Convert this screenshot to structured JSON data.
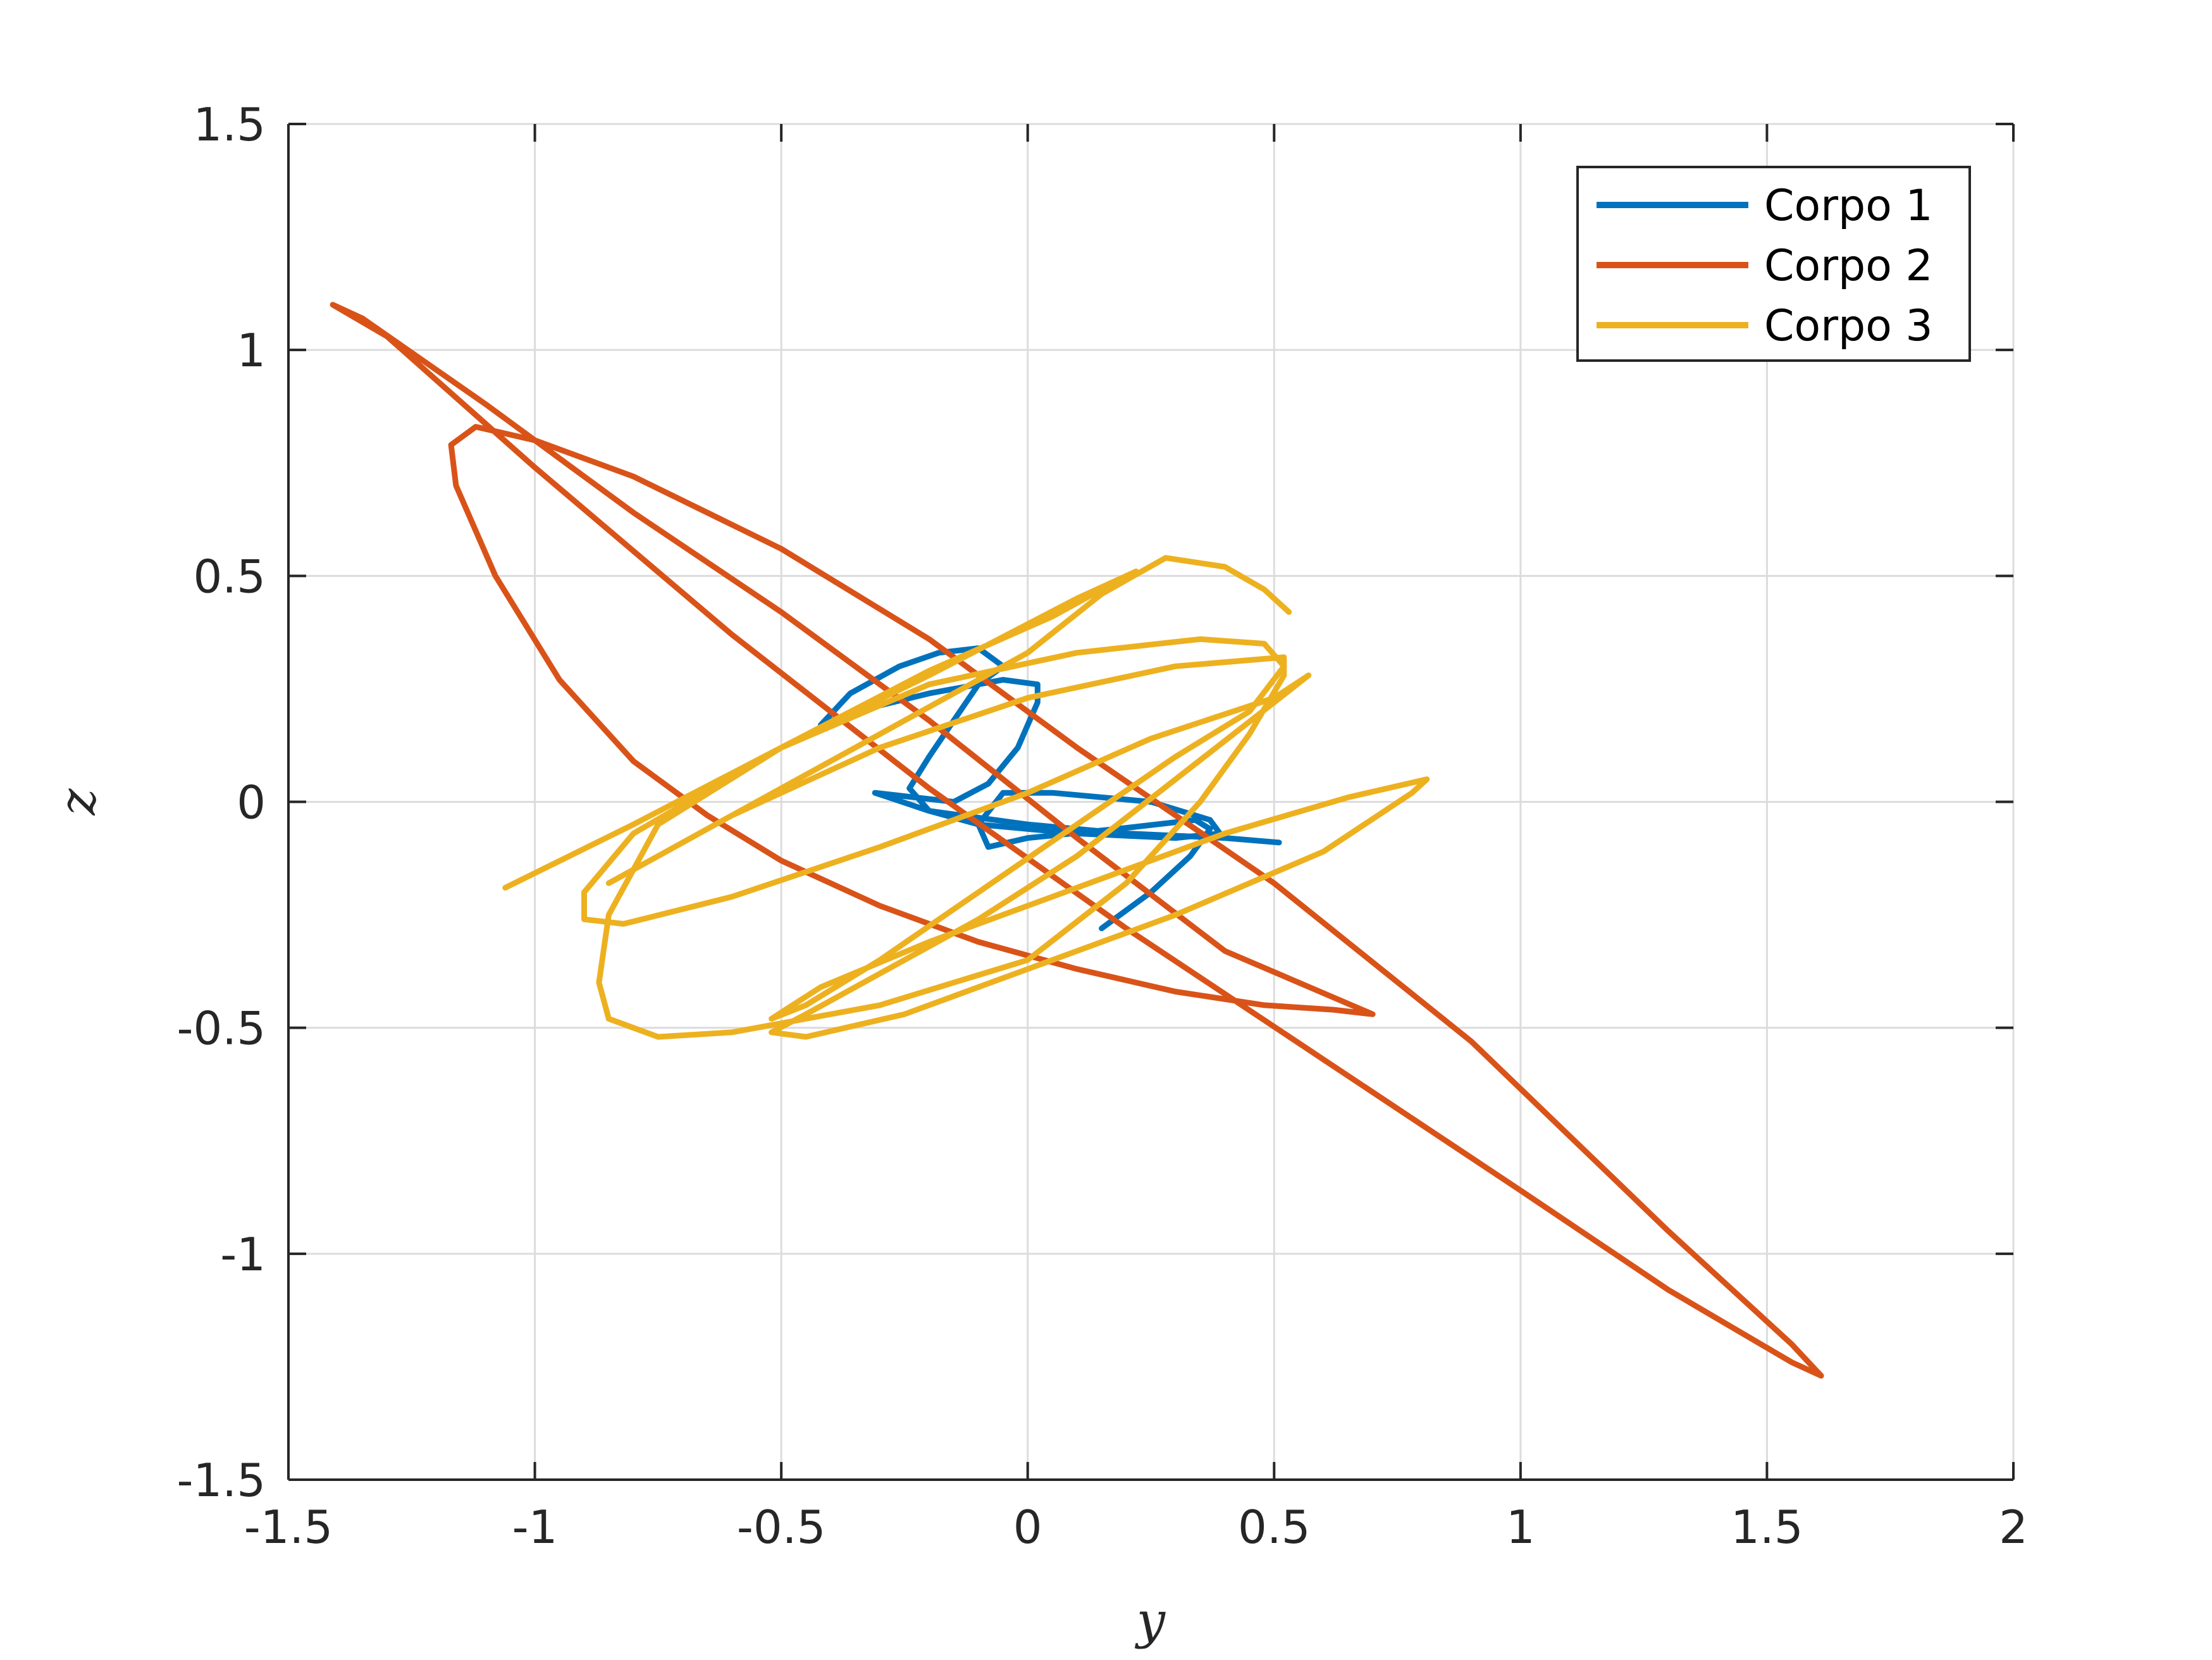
{
  "chart_data": {
    "type": "line",
    "xlabel": "y",
    "ylabel": "z",
    "xlim": [
      -1.5,
      2
    ],
    "ylim": [
      -1.5,
      1.5
    ],
    "xticks": [
      -1.5,
      -1,
      -0.5,
      0,
      0.5,
      1,
      1.5,
      2
    ],
    "yticks": [
      -1.5,
      -1,
      -0.5,
      0,
      0.5,
      1,
      1.5
    ],
    "xtick_labels": [
      "-1.5",
      "-1",
      "-0.5",
      "0",
      "0.5",
      "1",
      "1.5",
      "2"
    ],
    "ytick_labels": [
      "-1.5",
      "-1",
      "-0.5",
      "0",
      "0.5",
      "1",
      "1.5"
    ],
    "grid": true,
    "legend_position": "top-right",
    "series": [
      {
        "name": "Corpo 1",
        "color": "#0072BD",
        "points": [
          [
            0.15,
            -0.28
          ],
          [
            0.25,
            -0.2
          ],
          [
            0.33,
            -0.12
          ],
          [
            0.37,
            -0.06
          ],
          [
            0.34,
            -0.04
          ],
          [
            0.18,
            -0.06
          ],
          [
            0.0,
            -0.08
          ],
          [
            -0.08,
            -0.1
          ],
          [
            -0.1,
            -0.05
          ],
          [
            -0.05,
            0.02
          ],
          [
            0.05,
            0.02
          ],
          [
            0.25,
            0.0
          ],
          [
            0.37,
            -0.04
          ],
          [
            0.39,
            -0.07
          ],
          [
            0.3,
            -0.08
          ],
          [
            0.1,
            -0.07
          ],
          [
            -0.1,
            -0.05
          ],
          [
            -0.2,
            -0.02
          ],
          [
            -0.24,
            0.03
          ],
          [
            -0.2,
            0.1
          ],
          [
            -0.15,
            0.18
          ],
          [
            -0.1,
            0.26
          ],
          [
            -0.05,
            0.3
          ],
          [
            -0.1,
            0.34
          ],
          [
            -0.18,
            0.33
          ],
          [
            -0.26,
            0.3
          ],
          [
            -0.36,
            0.24
          ],
          [
            -0.42,
            0.17
          ],
          [
            -0.35,
            0.2
          ],
          [
            -0.2,
            0.24
          ],
          [
            -0.05,
            0.27
          ],
          [
            0.02,
            0.26
          ],
          [
            0.02,
            0.22
          ],
          [
            -0.02,
            0.12
          ],
          [
            -0.08,
            0.04
          ],
          [
            -0.15,
            0.0
          ],
          [
            -0.31,
            0.02
          ],
          [
            -0.2,
            -0.02
          ],
          [
            0.0,
            -0.05
          ],
          [
            0.2,
            -0.07
          ],
          [
            0.4,
            -0.08
          ],
          [
            0.51,
            -0.09
          ]
        ]
      },
      {
        "name": "Corpo 2",
        "color": "#D95319",
        "points": [
          [
            0.7,
            -0.47
          ],
          [
            0.62,
            -0.46
          ],
          [
            0.48,
            -0.45
          ],
          [
            0.3,
            -0.42
          ],
          [
            0.1,
            -0.37
          ],
          [
            -0.1,
            -0.31
          ],
          [
            -0.3,
            -0.23
          ],
          [
            -0.5,
            -0.13
          ],
          [
            -0.65,
            -0.03
          ],
          [
            -0.8,
            0.09
          ],
          [
            -0.95,
            0.27
          ],
          [
            -1.08,
            0.5
          ],
          [
            -1.16,
            0.7
          ],
          [
            -1.17,
            0.79
          ],
          [
            -1.12,
            0.83
          ],
          [
            -1.0,
            0.8
          ],
          [
            -0.8,
            0.72
          ],
          [
            -0.5,
            0.56
          ],
          [
            -0.2,
            0.36
          ],
          [
            0.1,
            0.12
          ],
          [
            0.5,
            -0.18
          ],
          [
            0.9,
            -0.53
          ],
          [
            1.3,
            -0.95
          ],
          [
            1.55,
            -1.2
          ],
          [
            1.61,
            -1.27
          ],
          [
            1.55,
            -1.24
          ],
          [
            1.3,
            -1.08
          ],
          [
            1.0,
            -0.86
          ],
          [
            0.6,
            -0.57
          ],
          [
            0.2,
            -0.28
          ],
          [
            -0.2,
            0.03
          ],
          [
            -0.6,
            0.37
          ],
          [
            -1.0,
            0.74
          ],
          [
            -1.3,
            1.03
          ],
          [
            -1.41,
            1.1
          ],
          [
            -1.35,
            1.07
          ],
          [
            -1.1,
            0.88
          ],
          [
            -0.8,
            0.64
          ],
          [
            -0.5,
            0.42
          ],
          [
            -0.2,
            0.18
          ],
          [
            0.1,
            -0.08
          ],
          [
            0.4,
            -0.33
          ],
          [
            0.7,
            -0.47
          ]
        ]
      },
      {
        "name": "Corpo 3",
        "color": "#EDB120",
        "points": [
          [
            -1.06,
            -0.19
          ],
          [
            -0.8,
            -0.05
          ],
          [
            -0.5,
            0.12
          ],
          [
            -0.2,
            0.29
          ],
          [
            0.05,
            0.41
          ],
          [
            0.2,
            0.5
          ],
          [
            0.22,
            0.51
          ],
          [
            0.1,
            0.45
          ],
          [
            -0.2,
            0.28
          ],
          [
            -0.5,
            0.12
          ],
          [
            -0.8,
            -0.07
          ],
          [
            -0.9,
            -0.2
          ],
          [
            -0.9,
            -0.26
          ],
          [
            -0.82,
            -0.27
          ],
          [
            -0.6,
            -0.21
          ],
          [
            -0.3,
            -0.1
          ],
          [
            0.0,
            0.02
          ],
          [
            0.25,
            0.14
          ],
          [
            0.5,
            0.23
          ],
          [
            0.57,
            0.28
          ],
          [
            0.5,
            0.22
          ],
          [
            0.3,
            0.05
          ],
          [
            0.1,
            -0.12
          ],
          [
            -0.1,
            -0.26
          ],
          [
            -0.3,
            -0.38
          ],
          [
            -0.45,
            -0.47
          ],
          [
            -0.52,
            -0.51
          ],
          [
            -0.45,
            -0.52
          ],
          [
            -0.25,
            -0.47
          ],
          [
            0.0,
            -0.37
          ],
          [
            0.3,
            -0.25
          ],
          [
            0.6,
            -0.11
          ],
          [
            0.78,
            0.02
          ],
          [
            0.81,
            0.05
          ],
          [
            0.65,
            0.01
          ],
          [
            0.4,
            -0.07
          ],
          [
            0.1,
            -0.19
          ],
          [
            -0.2,
            -0.31
          ],
          [
            -0.42,
            -0.41
          ],
          [
            -0.52,
            -0.48
          ],
          [
            -0.45,
            -0.45
          ],
          [
            -0.3,
            -0.35
          ],
          [
            -0.1,
            -0.2
          ],
          [
            0.1,
            -0.05
          ],
          [
            0.3,
            0.1
          ],
          [
            0.45,
            0.2
          ],
          [
            0.52,
            0.3
          ],
          [
            0.48,
            0.35
          ],
          [
            0.35,
            0.36
          ],
          [
            0.1,
            0.33
          ],
          [
            -0.2,
            0.26
          ],
          [
            -0.5,
            0.12
          ],
          [
            -0.75,
            -0.05
          ],
          [
            -0.85,
            -0.25
          ],
          [
            -0.87,
            -0.4
          ],
          [
            -0.85,
            -0.48
          ],
          [
            -0.75,
            -0.52
          ],
          [
            -0.6,
            -0.51
          ],
          [
            -0.3,
            -0.45
          ],
          [
            0.0,
            -0.35
          ],
          [
            0.2,
            -0.18
          ],
          [
            0.35,
            0.0
          ],
          [
            0.45,
            0.15
          ],
          [
            0.52,
            0.28
          ],
          [
            0.52,
            0.32
          ],
          [
            0.3,
            0.3
          ],
          [
            0.0,
            0.23
          ],
          [
            -0.3,
            0.12
          ],
          [
            -0.6,
            -0.03
          ],
          [
            -0.85,
            -0.18
          ],
          [
            -0.6,
            -0.03
          ],
          [
            -0.3,
            0.15
          ],
          [
            0.0,
            0.33
          ],
          [
            0.15,
            0.46
          ],
          [
            0.28,
            0.54
          ],
          [
            0.4,
            0.52
          ],
          [
            0.48,
            0.47
          ],
          [
            0.53,
            0.42
          ]
        ]
      }
    ]
  }
}
